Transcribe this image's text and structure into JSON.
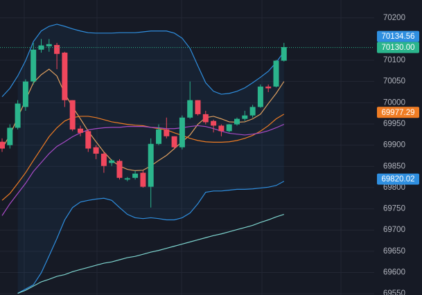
{
  "chart_data": {
    "type": "candlestick",
    "ylim": [
      69547,
      70242
    ],
    "yticks": [
      70200,
      70100,
      70050,
      70000,
      69950,
      69900,
      69850,
      69800,
      69750,
      69700,
      69650,
      69600,
      69550
    ],
    "grid": true,
    "up_color": "#2bb58c",
    "down_color": "#f0475d",
    "open": [
      69908,
      69900,
      69941,
      69990,
      70050,
      70125,
      70133,
      70136,
      70118,
      70006,
      69939,
      69933,
      69895,
      69880,
      69858,
      69863,
      69819,
      69823,
      69835,
      69802,
      69903,
      69937,
      69921,
      69895,
      69965,
      70006,
      69973,
      69957,
      69946,
      69933,
      69949,
      69962,
      69970,
      69990,
      70038,
      70038,
      70099
    ],
    "high": [
      69916,
      69949,
      70006,
      70055,
      70141,
      70150,
      70150,
      70141,
      70120,
      70006,
      69946,
      69937,
      69900,
      69884,
      69867,
      69867,
      69825,
      69840,
      69840,
      69916,
      69949,
      69965,
      69921,
      69970,
      70050,
      70006,
      69981,
      69960,
      69949,
      69950,
      69965,
      69981,
      69995,
      70043,
      70043,
      70101,
      70141
    ],
    "low": [
      69884,
      69892,
      69937,
      69981,
      70043,
      70118,
      70120,
      70079,
      69990,
      69933,
      69921,
      69884,
      69867,
      69835,
      69851,
      69819,
      69815,
      69819,
      69800,
      69753,
      69900,
      69916,
      69890,
      69890,
      69962,
      69970,
      69949,
      69930,
      69921,
      69930,
      69946,
      69957,
      69965,
      69988,
      70025,
      70036,
      70097
    ],
    "close": [
      69892,
      69941,
      69998,
      70050,
      70125,
      70135,
      70138,
      70115,
      70006,
      69937,
      69929,
      69892,
      69880,
      69851,
      69864,
      69823,
      69822,
      69833,
      69802,
      69903,
      69937,
      69921,
      69895,
      69965,
      70006,
      69973,
      69954,
      69946,
      69933,
      69949,
      69962,
      69970,
      69990,
      70038,
      70034,
      70099,
      70131
    ],
    "series": [
      {
        "color": "#2f8fe0",
        "values": [
          70014,
          70034,
          70063,
          70099,
          70144,
          70169,
          70180,
          70185,
          70180,
          70174,
          70169,
          70165,
          70164,
          70164,
          70164,
          70165,
          70165,
          70165,
          70167,
          70169,
          70169,
          70169,
          70164,
          70152,
          70128,
          70087,
          70047,
          70027,
          70020,
          70022,
          70027,
          70035,
          70047,
          70060,
          70074,
          70095,
          70120
        ]
      },
      {
        "color": "#2f8fe0",
        "values": [
          null,
          null,
          69551,
          69561,
          69571,
          69599,
          69639,
          69680,
          69724,
          69753,
          69766,
          69770,
          69773,
          69775,
          69770,
          69753,
          69737,
          69729,
          69727,
          69729,
          69727,
          69724,
          69724,
          69729,
          69740,
          69762,
          69789,
          69792,
          69792,
          69794,
          69796,
          69796,
          69797,
          69799,
          69801,
          69805,
          69815
        ]
      },
      {
        "color": "#e0a060",
        "values": [
          69892,
          69924,
          69965,
          70006,
          70047,
          70066,
          70079,
          70063,
          70022,
          69990,
          69962,
          69933,
          69908,
          69884,
          69864,
          69851,
          69843,
          69840,
          69841,
          69851,
          69864,
          69876,
          69892,
          69908,
          69924,
          69949,
          69965,
          69968,
          69962,
          69955,
          69954,
          69955,
          69962,
          69973,
          69998,
          70022,
          70050
        ]
      },
      {
        "color": "#f07d24",
        "values": [
          69770,
          69786,
          69810,
          69835,
          69864,
          69892,
          69920,
          69941,
          69957,
          69965,
          69968,
          69968,
          69965,
          69960,
          69955,
          69952,
          69949,
          69947,
          69946,
          69942,
          69939,
          69936,
          69929,
          69923,
          69916,
          69911,
          69908,
          69907,
          69907,
          69908,
          69911,
          69916,
          69923,
          69933,
          69946,
          69962,
          69973
        ]
      },
      {
        "color": "#a94bc8",
        "values": [
          69734,
          69762,
          69786,
          69810,
          69838,
          69859,
          69880,
          69897,
          69908,
          69920,
          69929,
          69936,
          69939,
          69941,
          69942,
          69942,
          69944,
          69944,
          69944,
          69942,
          69941,
          69939,
          69939,
          69941,
          69944,
          69946,
          69944,
          69939,
          69933,
          69928,
          69926,
          69924,
          69926,
          69929,
          69934,
          69941,
          69949
        ]
      },
      {
        "color": "#7fd6d0",
        "values": [
          null,
          null,
          69551,
          69558,
          69568,
          69578,
          69584,
          69591,
          69595,
          69602,
          69607,
          69612,
          69617,
          69622,
          69625,
          69630,
          69635,
          69638,
          69643,
          69648,
          69652,
          69657,
          69662,
          69667,
          69672,
          69677,
          69682,
          69687,
          69691,
          69696,
          69701,
          69706,
          69711,
          69718,
          69724,
          69731,
          69737
        ]
      }
    ],
    "price_labels": [
      {
        "value": 70134.56,
        "label": "70134.56",
        "color": "#2f8fe0"
      },
      {
        "value": 70130,
        "label": "70130.00",
        "color": "#2bb58c"
      },
      {
        "value": 69977.29,
        "label": "69977.29",
        "color": "#f07d24"
      },
      {
        "value": 69820.02,
        "label": "69820.02",
        "color": "#2f8fe0"
      }
    ]
  }
}
